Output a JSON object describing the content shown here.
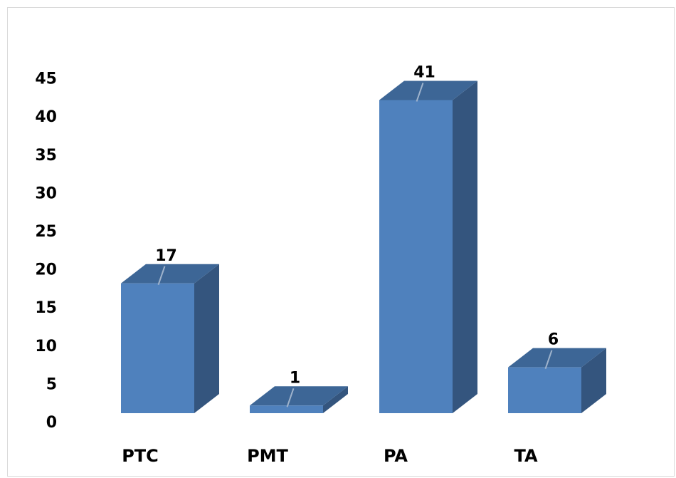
{
  "chart_data": {
    "type": "bar",
    "style": "3d-column",
    "categories": [
      "PTC",
      "PMT",
      "PA",
      "TA"
    ],
    "values": [
      17,
      1,
      41,
      6
    ],
    "data_labels": [
      "17",
      "1",
      "41",
      "6"
    ],
    "ylim": [
      0,
      45
    ],
    "yticks": [
      0,
      5,
      10,
      15,
      20,
      25,
      30,
      35,
      40,
      45
    ],
    "title": "",
    "xlabel": "",
    "ylabel": "",
    "grid": false,
    "legend": "none",
    "colors": {
      "front": "#4f81bd",
      "top": "#3d6696",
      "side": "#34557e",
      "leader": "#9fb3cc"
    }
  }
}
